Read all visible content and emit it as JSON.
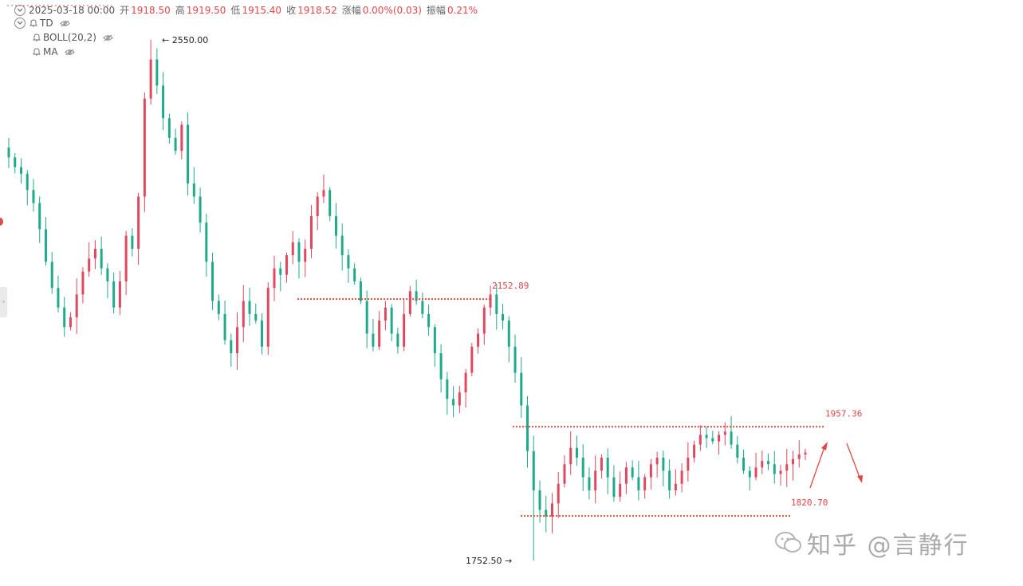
{
  "header": {
    "date": "2025-03-18 00:00",
    "open_label": "开",
    "open": "1918.50",
    "high_label": "高",
    "high": "1919.50",
    "low_label": "低",
    "low": "1915.40",
    "close_label": "收",
    "close": "1918.52",
    "change_label": "涨幅",
    "change": "0.00%(0.03)",
    "amplitude_label": "振幅",
    "amplitude": "0.21%"
  },
  "indicators": [
    {
      "label": "TD"
    },
    {
      "label": "BOLL(20,2)"
    },
    {
      "label": "MA"
    }
  ],
  "colors": {
    "up": "#e0485f",
    "down": "#1faa8a",
    "annotation": "#e04848"
  },
  "watermark": "知乎 @言静行",
  "chart_data": {
    "type": "candlestick",
    "y_range": [
      1752.5,
      2550.0
    ],
    "annotations": {
      "high_label": "← 2550.00",
      "low_label": "1752.50 →",
      "resistance": {
        "value": 2152.89,
        "label": "2152.89"
      },
      "range_top": {
        "value": 1957.36,
        "label": "1957.36"
      },
      "range_bottom": {
        "value": 1820.7,
        "label": "1820.70"
      },
      "arrows": [
        "up",
        "down"
      ]
    },
    "closes": [
      2370,
      2355,
      2345,
      2320,
      2300,
      2260,
      2210,
      2170,
      2140,
      2110,
      2125,
      2160,
      2195,
      2215,
      2230,
      2200,
      2180,
      2140,
      2180,
      2250,
      2230,
      2310,
      2460,
      2520,
      2480,
      2430,
      2400,
      2380,
      2420,
      2330,
      2310,
      2270,
      2210,
      2150,
      2130,
      2090,
      2070,
      2110,
      2150,
      2130,
      2120,
      2080,
      2170,
      2200,
      2190,
      2220,
      2240,
      2210,
      2230,
      2280,
      2310,
      2320,
      2280,
      2250,
      2220,
      2200,
      2180,
      2150,
      2100,
      2080,
      2120,
      2140,
      2100,
      2080,
      2130,
      2165,
      2150,
      2130,
      2110,
      2070,
      2030,
      2000,
      1990,
      2010,
      2040,
      2080,
      2100,
      2140,
      2160,
      2130,
      2120,
      2080,
      2040,
      1990,
      1920,
      1860,
      1830,
      1820,
      1840,
      1870,
      1900,
      1925,
      1910,
      1880,
      1860,
      1890,
      1910,
      1880,
      1850,
      1870,
      1895,
      1880,
      1860,
      1880,
      1900,
      1910,
      1890,
      1860,
      1870,
      1890,
      1910,
      1930,
      1945,
      1940,
      1935,
      1945,
      1950,
      1930,
      1910,
      1890,
      1880,
      1895,
      1905,
      1900,
      1885,
      1890,
      1900,
      1908,
      1915,
      1918
    ]
  }
}
